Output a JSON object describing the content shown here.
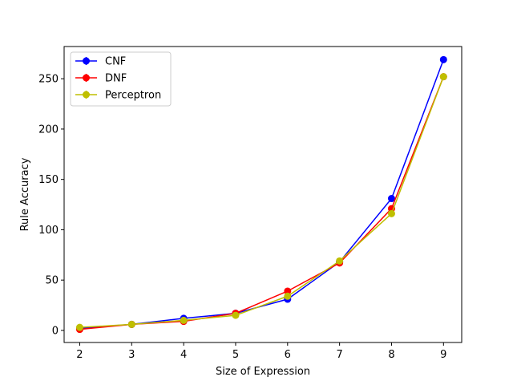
{
  "chart_data": {
    "type": "line",
    "title": "",
    "xlabel": "Size of Expression",
    "ylabel": "Rule Accuracy",
    "x": [
      2,
      3,
      4,
      5,
      6,
      7,
      8,
      9
    ],
    "xlim": [
      1.7,
      9.35
    ],
    "ylim": [
      -12,
      282
    ],
    "xticks": [
      2,
      3,
      4,
      5,
      6,
      7,
      8,
      9
    ],
    "yticks": [
      0,
      50,
      100,
      150,
      200,
      250
    ],
    "grid": false,
    "legend_position": "top-left",
    "series": [
      {
        "name": "CNF",
        "color": "#0000ff",
        "marker": "circle",
        "values": [
          2,
          6,
          12,
          17,
          31,
          68,
          131,
          269
        ]
      },
      {
        "name": "DNF",
        "color": "#ff0000",
        "marker": "circle",
        "values": [
          1,
          6,
          9,
          17,
          39,
          67,
          121,
          252
        ]
      },
      {
        "name": "Perceptron",
        "color": "#bfbf00",
        "marker": "circle",
        "values": [
          3,
          6,
          10,
          15,
          34,
          69,
          116,
          252
        ]
      }
    ]
  }
}
